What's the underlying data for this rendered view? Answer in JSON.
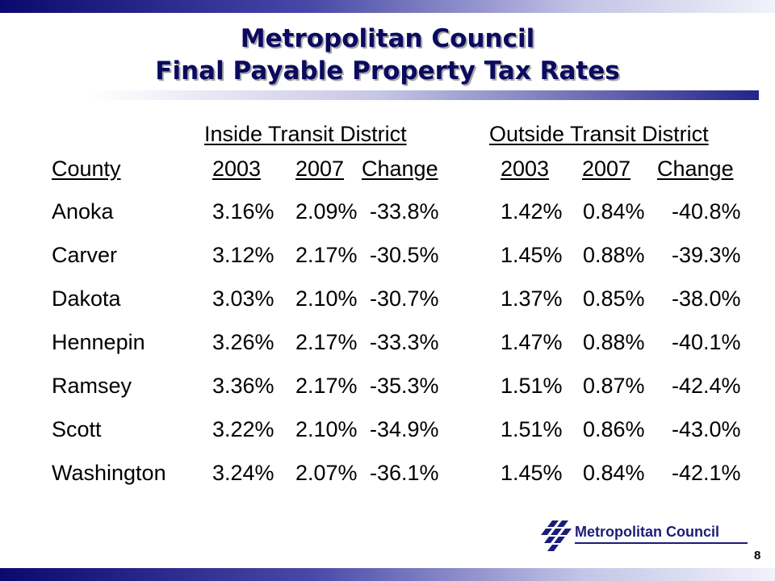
{
  "slide": {
    "title_line1": "Metropolitan Council",
    "title_line2": "Final Payable Property Tax Rates",
    "page_number": "8"
  },
  "table": {
    "group_inside": "Inside Transit District",
    "group_outside": "Outside Transit District",
    "columns": [
      "County",
      "2003",
      "2007",
      "Change",
      "2003",
      "2007",
      "Change"
    ],
    "rows": [
      [
        "Anoka",
        "3.16%",
        "2.09%",
        "-33.8%",
        "1.42%",
        "0.84%",
        "-40.8%"
      ],
      [
        "Carver",
        "3.12%",
        "2.17%",
        "-30.5%",
        "1.45%",
        "0.88%",
        "-39.3%"
      ],
      [
        "Dakota",
        "3.03%",
        "2.10%",
        "-30.7%",
        "1.37%",
        "0.85%",
        "-38.0%"
      ],
      [
        "Hennepin",
        "3.26%",
        "2.17%",
        "-33.3%",
        "1.47%",
        "0.88%",
        "-40.1%"
      ],
      [
        "Ramsey",
        "3.36%",
        "2.17%",
        "-35.3%",
        "1.51%",
        "0.87%",
        "-42.4%"
      ],
      [
        "Scott",
        "3.22%",
        "2.10%",
        "-34.9%",
        "1.51%",
        "0.86%",
        "-43.0%"
      ],
      [
        "Washington",
        "3.24%",
        "2.07%",
        "-36.1%",
        "1.45%",
        "0.84%",
        "-42.1%"
      ]
    ]
  },
  "logo": {
    "text": "Metropolitan Council",
    "icon": "metropolitan-council-logo-icon",
    "color": "#1c1c78"
  },
  "colors": {
    "title": "#0a0a60",
    "bar_dark": "#0a0a6e"
  }
}
